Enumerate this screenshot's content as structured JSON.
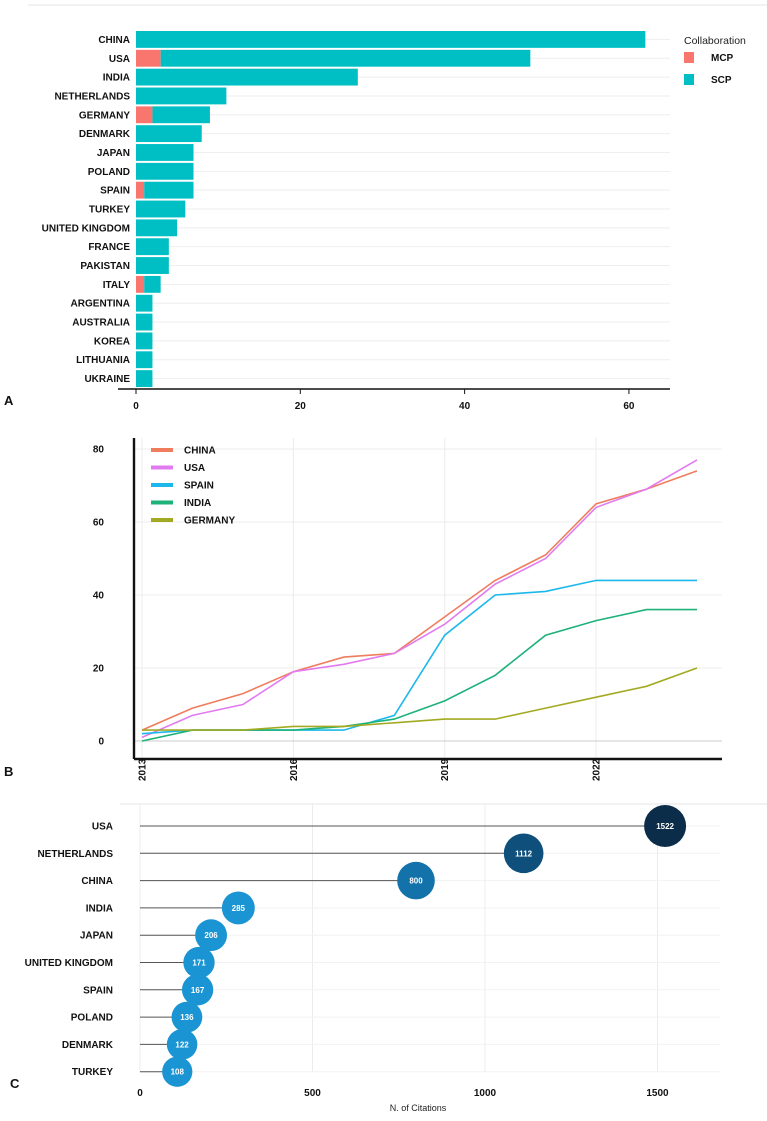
{
  "chart_data": [
    {
      "id": "A",
      "type": "bar",
      "orientation": "horizontal",
      "stacked": true,
      "panel_label": "A",
      "categories": [
        "CHINA",
        "USA",
        "INDIA",
        "NETHERLANDS",
        "GERMANY",
        "DENMARK",
        "JAPAN",
        "POLAND",
        "SPAIN",
        "TURKEY",
        "UNITED KINGDOM",
        "FRANCE",
        "PAKISTAN",
        "ITALY",
        "ARGENTINA",
        "AUSTRALIA",
        "KOREA",
        "LITHUANIA",
        "UKRAINE"
      ],
      "series": [
        {
          "name": "MCP",
          "color": "#f8766d",
          "values": [
            0,
            3,
            0,
            0,
            2,
            0,
            0,
            0,
            1,
            0,
            0,
            0,
            0,
            1,
            0,
            0,
            0,
            0,
            0
          ]
        },
        {
          "name": "SCP",
          "color": "#00bfc4",
          "values": [
            62,
            45,
            27,
            11,
            7,
            8,
            7,
            7,
            6,
            6,
            5,
            4,
            4,
            2,
            2,
            2,
            2,
            2,
            2
          ]
        }
      ],
      "xlim": [
        0,
        65
      ],
      "xticks": [
        "0",
        "20",
        "40",
        "60"
      ],
      "xtick_values": [
        0,
        20,
        40,
        60
      ],
      "legend_title": "Collaboration",
      "legend_position": "right"
    },
    {
      "id": "B",
      "type": "line",
      "panel_label": "B",
      "x": [
        2013,
        2014,
        2015,
        2016,
        2017,
        2018,
        2019,
        2020,
        2021,
        2022,
        2023,
        2024
      ],
      "series": [
        {
          "name": "CHINA",
          "color": "#f07c5e",
          "values": [
            3,
            9,
            13,
            19,
            23,
            24,
            34,
            44,
            51,
            65,
            69,
            74
          ]
        },
        {
          "name": "USA",
          "color": "#e17bf0",
          "values": [
            1,
            7,
            10,
            19,
            21,
            24,
            32,
            43,
            50,
            64,
            69,
            77
          ]
        },
        {
          "name": "SPAIN",
          "color": "#1cb8ec",
          "values": [
            2,
            3,
            3,
            3,
            3,
            7,
            29,
            40,
            41,
            44,
            44,
            44
          ]
        },
        {
          "name": "INDIA",
          "color": "#1cb27a",
          "values": [
            0,
            3,
            3,
            3,
            4,
            6,
            11,
            18,
            29,
            33,
            36,
            36
          ]
        },
        {
          "name": "GERMANY",
          "color": "#a3aa22",
          "values": [
            3,
            3,
            3,
            4,
            4,
            5,
            6,
            6,
            9,
            12,
            15,
            20
          ]
        }
      ],
      "ylim": [
        0,
        80
      ],
      "yticks": [
        "0",
        "20",
        "40",
        "60",
        "80"
      ],
      "ytick_values": [
        0,
        20,
        40,
        60,
        80
      ],
      "xticks": [
        "2013",
        "2016",
        "2019",
        "2022"
      ],
      "xtick_values": [
        2013,
        2016,
        2019,
        2022
      ],
      "legend_position": "top-left"
    },
    {
      "id": "C",
      "type": "scatter",
      "style": "lollipop",
      "panel_label": "C",
      "categories": [
        "USA",
        "NETHERLANDS",
        "CHINA",
        "INDIA",
        "JAPAN",
        "UNITED KINGDOM",
        "SPAIN",
        "POLAND",
        "DENMARK",
        "TURKEY"
      ],
      "values": [
        1522,
        1112,
        800,
        285,
        206,
        171,
        167,
        136,
        122,
        108
      ],
      "labels": [
        "1522",
        "1112",
        "800",
        "285",
        "206",
        "171",
        "167",
        "136",
        "122",
        "108"
      ],
      "xlim": [
        0,
        1600
      ],
      "xticks": [
        "0",
        "500",
        "1000",
        "1500"
      ],
      "xtick_values": [
        0,
        500,
        1000,
        1500
      ],
      "xlabel": "N. of Citations"
    }
  ]
}
